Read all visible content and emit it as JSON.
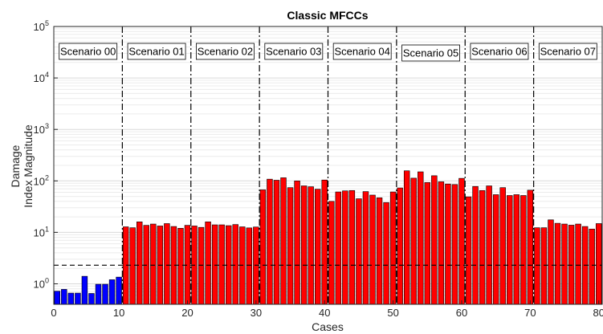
{
  "chart_data": {
    "type": "bar",
    "title": "Classic MFCCs",
    "xlabel": "Cases",
    "ylabel_lines": [
      "Damage",
      "Index Magnitude"
    ],
    "x": [
      1,
      2,
      3,
      4,
      5,
      6,
      7,
      8,
      9,
      10,
      11,
      12,
      13,
      14,
      15,
      16,
      17,
      18,
      19,
      20,
      21,
      22,
      23,
      24,
      25,
      26,
      27,
      28,
      29,
      30,
      31,
      32,
      33,
      34,
      35,
      36,
      37,
      38,
      39,
      40,
      41,
      42,
      43,
      44,
      45,
      46,
      47,
      48,
      49,
      50,
      51,
      52,
      53,
      54,
      55,
      56,
      57,
      58,
      59,
      60,
      61,
      62,
      63,
      64,
      65,
      66,
      67,
      68,
      69,
      70,
      71,
      72,
      73,
      74,
      75,
      76,
      77,
      78,
      79,
      80
    ],
    "values": [
      0.72,
      0.78,
      0.66,
      0.66,
      1.4,
      0.65,
      0.98,
      0.98,
      1.2,
      1.35,
      12.8,
      12.3,
      16,
      13.7,
      14.5,
      13.3,
      14.8,
      13,
      12,
      13.7,
      13.3,
      12.5,
      16,
      14,
      14,
      13.5,
      14.2,
      12.8,
      12.2,
      12.7,
      67,
      108,
      103,
      115,
      74,
      100,
      80,
      77,
      69,
      104,
      40,
      61,
      64,
      65,
      45,
      62,
      53,
      47,
      38,
      61,
      73,
      157,
      113,
      150,
      93,
      126,
      96,
      87,
      85,
      112,
      49,
      78,
      65,
      80,
      54,
      74,
      52,
      54,
      52,
      66,
      12.3,
      12.3,
      17.5,
      15,
      14.5,
      13.8,
      14.5,
      13,
      11.6,
      14.8
    ],
    "bar_colors": [
      "#0000ff",
      "#0000ff",
      "#0000ff",
      "#0000ff",
      "#0000ff",
      "#0000ff",
      "#0000ff",
      "#0000ff",
      "#0000ff",
      "#0000ff",
      "#ff0000",
      "#ff0000",
      "#ff0000",
      "#ff0000",
      "#ff0000",
      "#ff0000",
      "#ff0000",
      "#ff0000",
      "#ff0000",
      "#ff0000",
      "#ff0000",
      "#ff0000",
      "#ff0000",
      "#ff0000",
      "#ff0000",
      "#ff0000",
      "#ff0000",
      "#ff0000",
      "#ff0000",
      "#ff0000",
      "#ff0000",
      "#ff0000",
      "#ff0000",
      "#ff0000",
      "#ff0000",
      "#ff0000",
      "#ff0000",
      "#ff0000",
      "#ff0000",
      "#ff0000",
      "#ff0000",
      "#ff0000",
      "#ff0000",
      "#ff0000",
      "#ff0000",
      "#ff0000",
      "#ff0000",
      "#ff0000",
      "#ff0000",
      "#ff0000",
      "#ff0000",
      "#ff0000",
      "#ff0000",
      "#ff0000",
      "#ff0000",
      "#ff0000",
      "#ff0000",
      "#ff0000",
      "#ff0000",
      "#ff0000",
      "#ff0000",
      "#ff0000",
      "#ff0000",
      "#ff0000",
      "#ff0000",
      "#ff0000",
      "#ff0000",
      "#ff0000",
      "#ff0000",
      "#ff0000",
      "#ff0000",
      "#ff0000",
      "#ff0000",
      "#ff0000",
      "#ff0000",
      "#ff0000",
      "#ff0000",
      "#ff0000",
      "#ff0000",
      "#ff0000"
    ],
    "xlim": [
      0.5,
      80.5
    ],
    "ylim": [
      0.4,
      100000
    ],
    "yscale": "log",
    "xticks": [
      0,
      10,
      20,
      30,
      40,
      50,
      60,
      70,
      80
    ],
    "yticks": [
      {
        "value": 1,
        "exp": "0"
      },
      {
        "value": 10,
        "exp": "1"
      },
      {
        "value": 100,
        "exp": "2"
      },
      {
        "value": 1000,
        "exp": "3"
      },
      {
        "value": 10000,
        "exp": "4"
      },
      {
        "value": 100000,
        "exp": "5"
      }
    ],
    "ytick_base": "10",
    "threshold": 2.3,
    "scenario_boundaries": [
      10.5,
      20.5,
      30.5,
      40.5,
      50.5,
      60.5,
      70.5
    ],
    "scenarios": [
      {
        "label": "Scenario 00",
        "center": 5.5
      },
      {
        "label": "Scenario 01",
        "center": 15.5
      },
      {
        "label": "Scenario 02",
        "center": 25.5
      },
      {
        "label": "Scenario 03",
        "center": 35.5
      },
      {
        "label": "Scenario 04",
        "center": 45.5
      },
      {
        "label": "Scenario 05",
        "center": 55.5
      },
      {
        "label": "Scenario 06",
        "center": 65.5
      },
      {
        "label": "Scenario 07",
        "center": 75.5
      }
    ],
    "grid": "y-minor",
    "colors": {
      "healthy": "#0000ff",
      "damaged": "#ff0000"
    }
  }
}
